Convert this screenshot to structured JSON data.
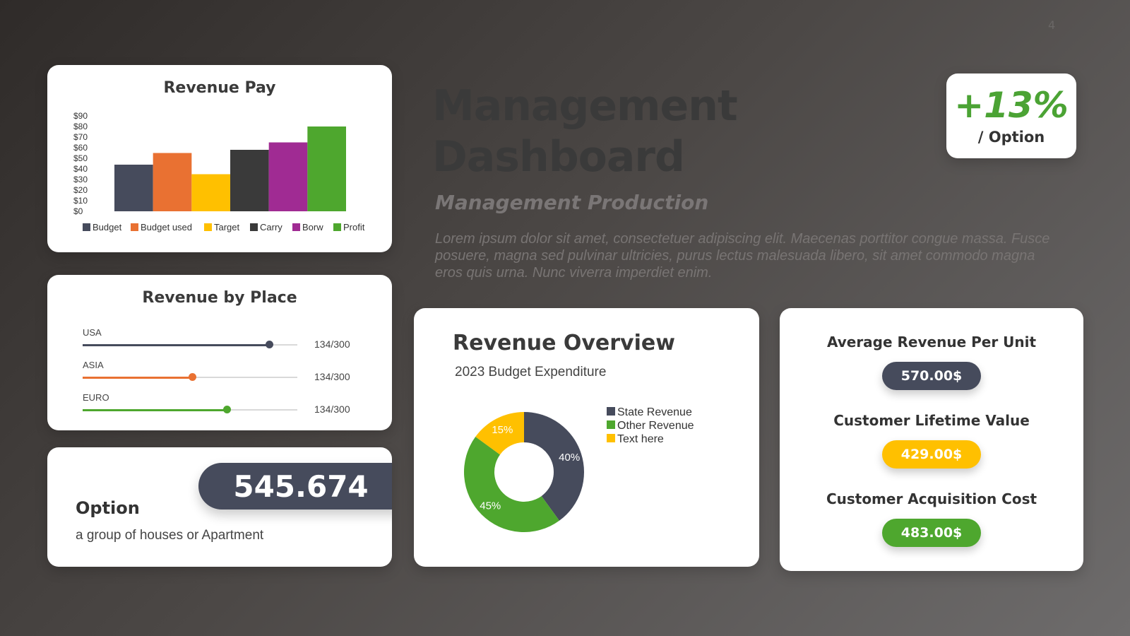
{
  "page_number": "4",
  "colors": {
    "slate": "#464b5c",
    "orange": "#e97132",
    "yellow": "#ffc000",
    "dark": "#3a3a3a",
    "purple": "#a02b93",
    "green": "#4ea72e"
  },
  "revenue_pay": {
    "title": "Revenue Pay",
    "chart_data": {
      "type": "bar",
      "title": "Revenue Pay",
      "categories": [
        "Budget",
        "Budget used",
        "Target",
        "Carry",
        "Borw",
        "Profit"
      ],
      "values": [
        44,
        55,
        35,
        58,
        65,
        80
      ],
      "colors": [
        "#464b5c",
        "#e97132",
        "#ffc000",
        "#3a3a3a",
        "#a02b93",
        "#4ea72e"
      ],
      "y_ticks": [
        "$0",
        "$10",
        "$20",
        "$30",
        "$40",
        "$50",
        "$60",
        "$70",
        "$80",
        "$90"
      ],
      "ylim": [
        0,
        90
      ],
      "legend_position": "bottom",
      "grid": false
    }
  },
  "revenue_by_place": {
    "title": "Revenue by Place",
    "rows": [
      {
        "label": "USA",
        "value": "134/300",
        "level": 0.87,
        "color": "#464b5c"
      },
      {
        "label": "ASIA",
        "value": "134/300",
        "level": 0.51,
        "color": "#e97132"
      },
      {
        "label": "EURO",
        "value": "134/300",
        "level": 0.67,
        "color": "#4ea72e"
      }
    ]
  },
  "option_card": {
    "number": "545.674",
    "title": "Option",
    "subtitle": "a group of houses or Apartment"
  },
  "heading": {
    "title_line1": "Management",
    "title_line2": "Dashboard",
    "subtitle": "Management Production",
    "description": "Lorem ipsum dolor sit amet, consectetuer adipiscing elit. Maecenas porttitor congue massa. Fusce posuere, magna sed pulvinar ultricies, purus lectus malesuada libero, sit amet commodo magna eros quis urna. Nunc viverra imperdiet enim."
  },
  "percent_card": {
    "value": "+13%",
    "label": "/ Option"
  },
  "revenue_overview": {
    "title": "Revenue Overview",
    "subtitle": "2023 Budget Expenditure",
    "chart_data": {
      "type": "pie",
      "donut": true,
      "categories": [
        "State Revenue",
        "Other Revenue",
        "Text here"
      ],
      "values": [
        40,
        45,
        15
      ],
      "labels": [
        "40%",
        "45%",
        "15%"
      ],
      "colors": [
        "#464b5c",
        "#4ea72e",
        "#ffc000"
      ],
      "legend_position": "right"
    }
  },
  "metrics": [
    {
      "label": "Average Revenue Per Unit",
      "value": "570.00$",
      "color": "#464b5c"
    },
    {
      "label": "Customer Lifetime Value",
      "value": "429.00$",
      "color": "#ffc000"
    },
    {
      "label": "Customer Acquisition Cost",
      "value": "483.00$",
      "color": "#4ea72e"
    }
  ]
}
